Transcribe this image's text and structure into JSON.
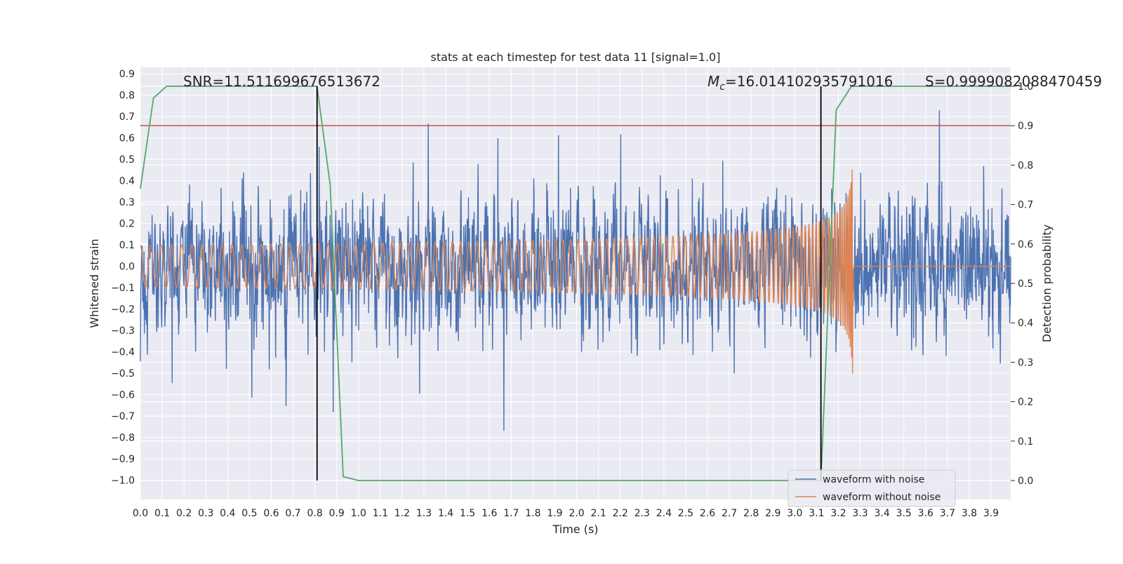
{
  "chart_data": {
    "type": "line",
    "title": "stats at each timestep for test data 11 [signal=1.0]",
    "xlabel": "Time (s)",
    "ylabel": "Whitened strain",
    "y2label": "Detection probability",
    "xlim": [
      0.0,
      3.99
    ],
    "ylim": [
      -1.09,
      0.93
    ],
    "y2lim": [
      -0.048,
      1.048
    ],
    "x_ticks": [
      "0.0",
      "0.1",
      "0.2",
      "0.3",
      "0.4",
      "0.5",
      "0.6",
      "0.7",
      "0.8",
      "0.9",
      "1.0",
      "1.1",
      "1.2",
      "1.3",
      "1.4",
      "1.5",
      "1.6",
      "1.7",
      "1.8",
      "1.9",
      "2.0",
      "2.1",
      "2.2",
      "2.3",
      "2.4",
      "2.5",
      "2.6",
      "2.7",
      "2.8",
      "2.9",
      "3.0",
      "3.1",
      "3.2",
      "3.3",
      "3.4",
      "3.5",
      "3.6",
      "3.7",
      "3.8",
      "3.9"
    ],
    "y_ticks": [
      "0.9",
      "0.8",
      "0.7",
      "0.6",
      "0.5",
      "0.4",
      "0.3",
      "0.2",
      "0.1",
      "0.0",
      "−0.1",
      "−0.2",
      "−0.3",
      "−0.4",
      "−0.5",
      "−0.6",
      "−0.7",
      "−0.8",
      "−0.9",
      "−1.0"
    ],
    "y2_ticks": [
      "1.0",
      "0.9",
      "0.8",
      "0.7",
      "0.6",
      "0.5",
      "0.4",
      "0.3",
      "0.2",
      "0.1",
      "0.0"
    ],
    "grid": true,
    "legend_position": "lower-right",
    "threshold": 0.9,
    "vlines": [
      0.81,
      3.12
    ],
    "annotations": {
      "snr": "SNR=11.511699676513672",
      "mc_symbol": "M",
      "mc_sub": "c",
      "mc_value": "=16.014102935791016",
      "s": "S=0.9999082088470459"
    },
    "series": [
      {
        "name": "waveform with noise",
        "color": "#4c72b0",
        "kind": "noise",
        "amplitude_std": 0.19,
        "seed": 11
      },
      {
        "name": "waveform without noise",
        "color": "#dd8452",
        "kind": "chirp",
        "t_merger": 3.27,
        "amp_start": 0.02,
        "amp_peak": 0.53
      },
      {
        "name": "detection probability",
        "color": "#55a868",
        "axis": "right",
        "x": [
          0.0,
          0.06,
          0.12,
          0.81,
          0.87,
          0.93,
          1.0,
          2.3,
          3.12,
          3.19,
          3.26,
          3.99
        ],
        "y": [
          0.74,
          0.97,
          1.0,
          1.0,
          0.75,
          0.01,
          0.0,
          0.0,
          0.0,
          0.94,
          1.0,
          1.0
        ]
      }
    ],
    "colors": {
      "threshold": "#c44e52",
      "vline": "#000000",
      "plot_bg": "#eaeaf2",
      "grid": "#ffffff"
    }
  }
}
